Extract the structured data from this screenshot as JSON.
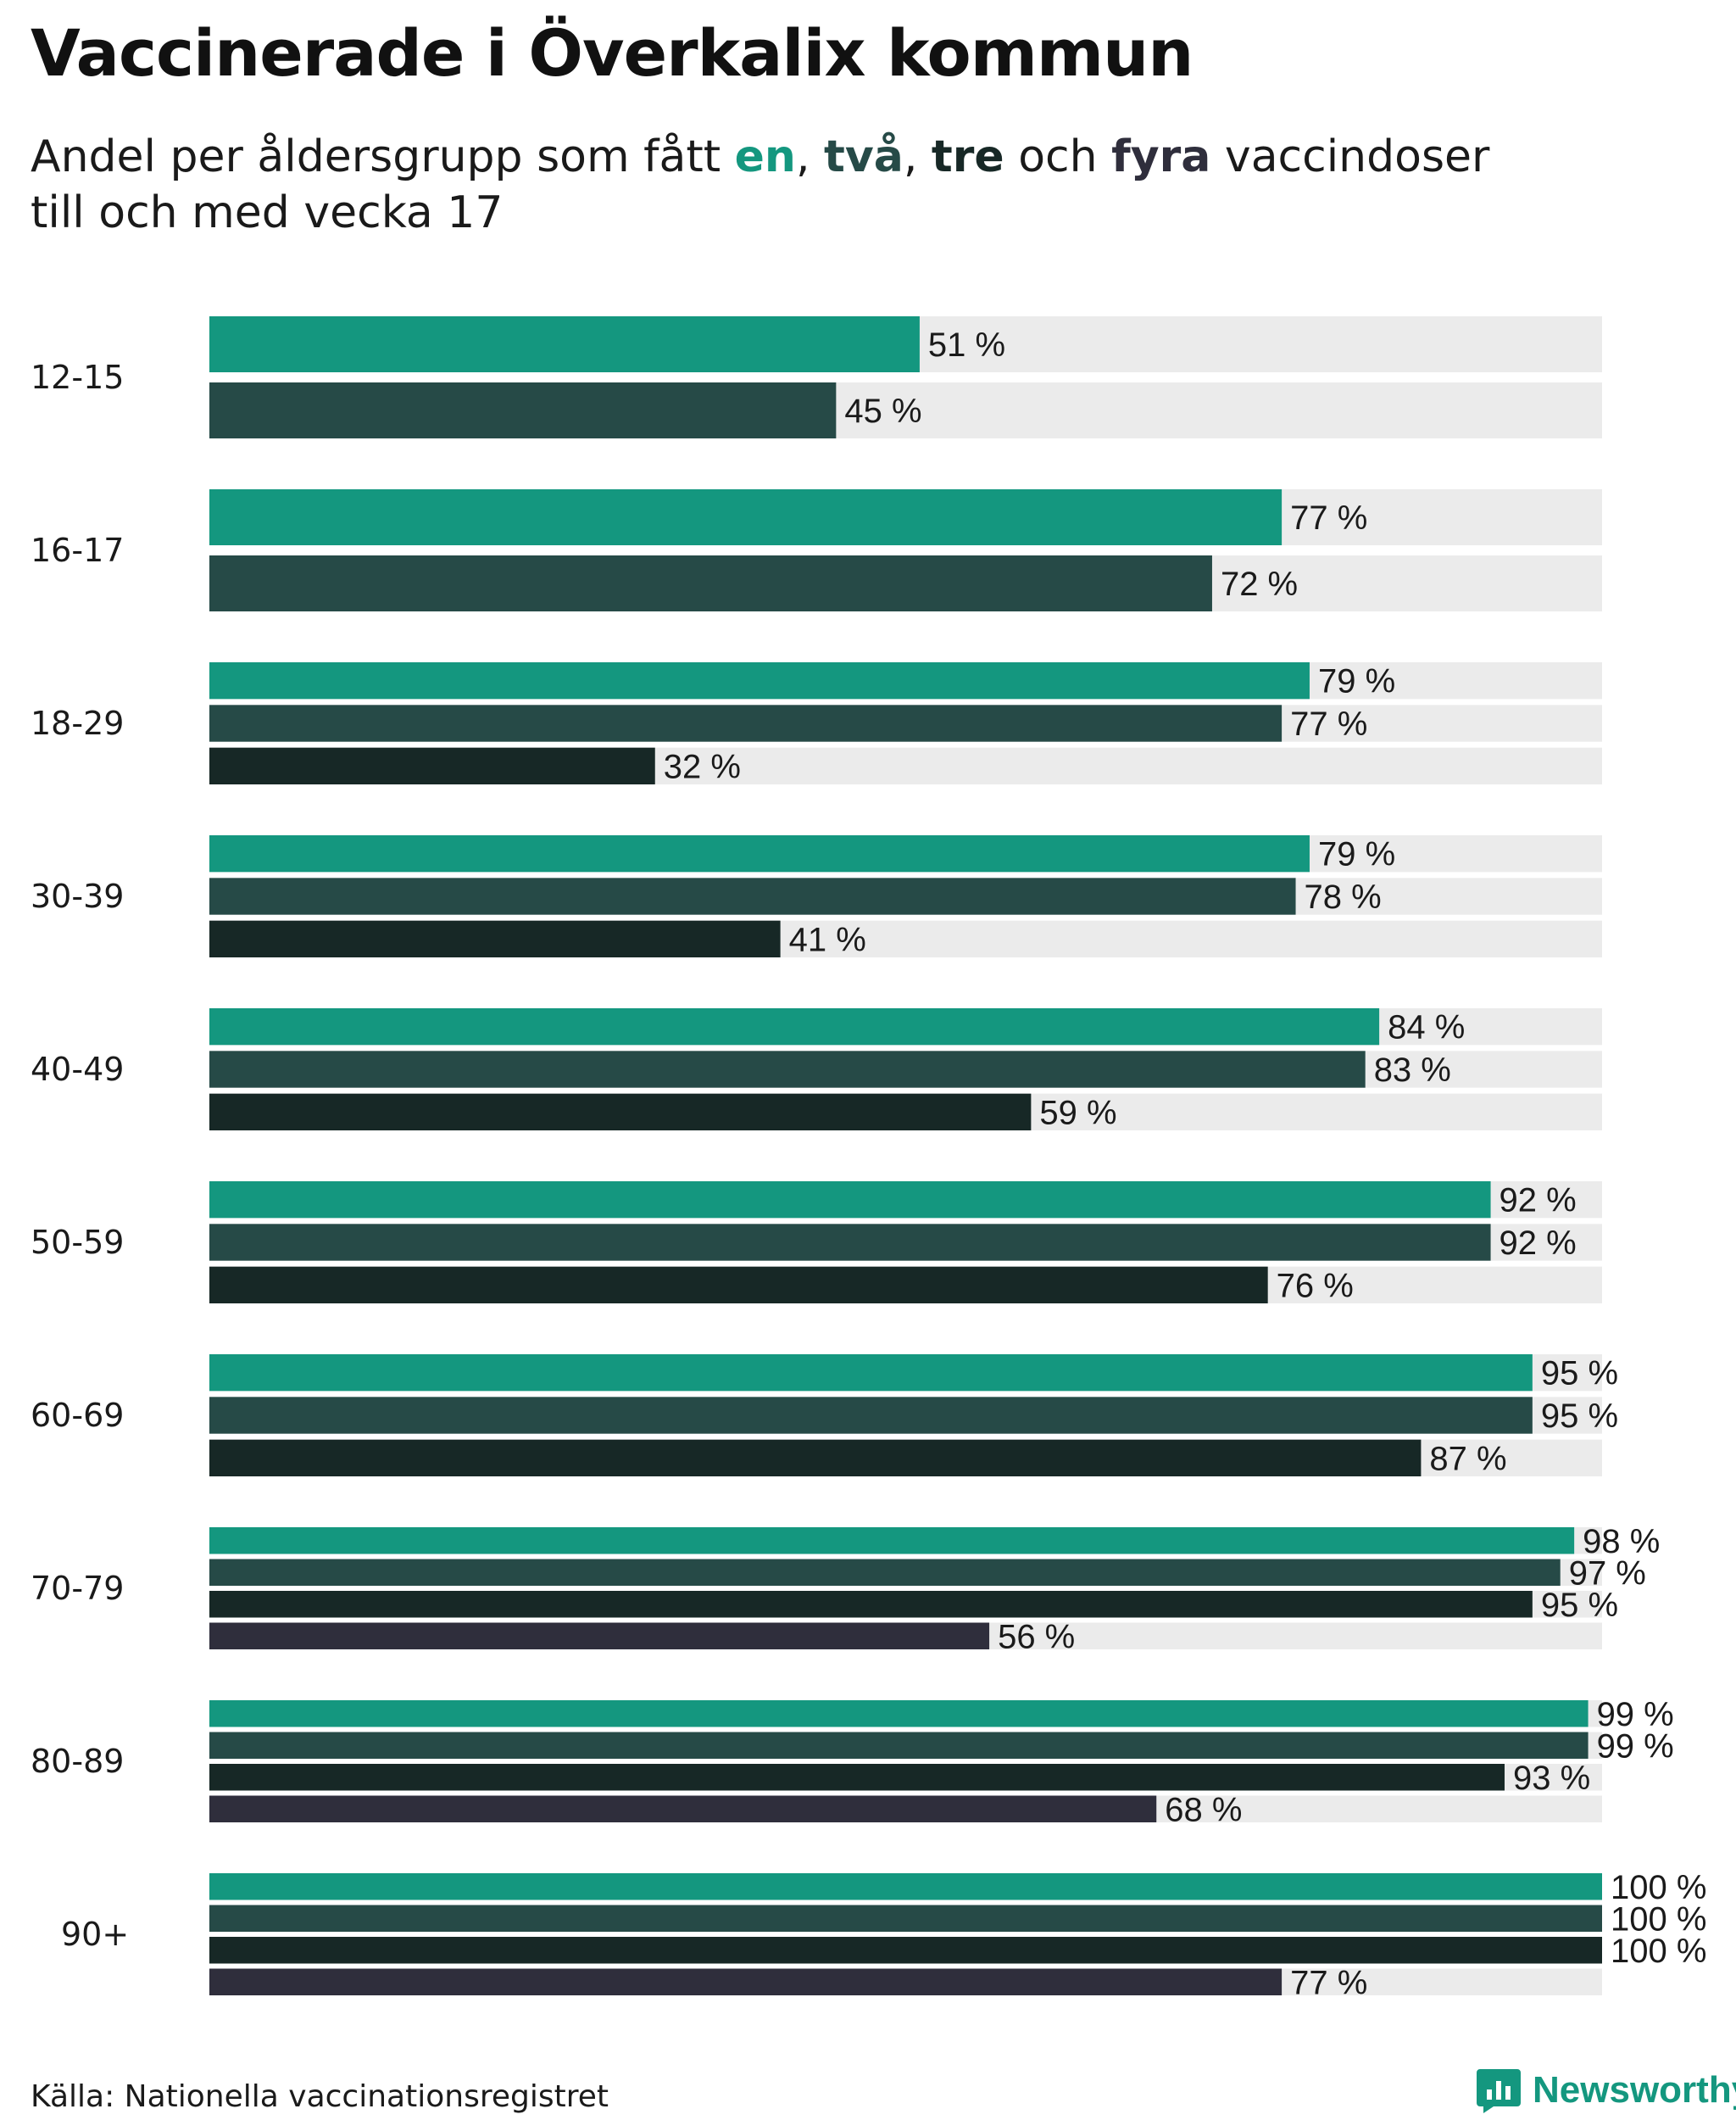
{
  "title": "Vaccinerade i Överkalix kommun",
  "subtitle": {
    "prefix": "Andel per åldersgrupp som fått ",
    "dose1": "en",
    "sep1": ", ",
    "dose2": "två",
    "sep2": ", ",
    "dose3": "tre",
    "conj": " och ",
    "dose4": "fyra",
    "suffix": " vaccindoser",
    "line2": "till och med vecka 17"
  },
  "colors": {
    "dose1": "#14977f",
    "dose2": "#264a47",
    "dose3": "#172826",
    "dose4": "#2f2e3c",
    "track": "#ebebeb"
  },
  "chart_data": {
    "type": "bar",
    "orientation": "horizontal",
    "value_suffix": " %",
    "xlim": [
      0,
      100
    ],
    "grid": false,
    "categories": [
      "12-15",
      "16-17",
      "18-29",
      "30-39",
      "40-49",
      "50-59",
      "60-69",
      "70-79",
      "80-89",
      "90+"
    ],
    "series": [
      {
        "name": "en",
        "values": [
          51,
          77,
          79,
          79,
          84,
          92,
          95,
          98,
          99,
          100
        ]
      },
      {
        "name": "två",
        "values": [
          45,
          72,
          77,
          78,
          83,
          92,
          95,
          97,
          99,
          100
        ]
      },
      {
        "name": "tre",
        "values": [
          null,
          null,
          32,
          41,
          59,
          76,
          87,
          95,
          93,
          100
        ]
      },
      {
        "name": "fyra",
        "values": [
          null,
          null,
          null,
          null,
          null,
          null,
          null,
          56,
          68,
          77
        ]
      }
    ]
  },
  "footer": {
    "source": "Källa: Nationella vaccinationsregistret",
    "brand": "Newsworthy",
    "brand_icon": "newsworthy-logo-icon"
  }
}
